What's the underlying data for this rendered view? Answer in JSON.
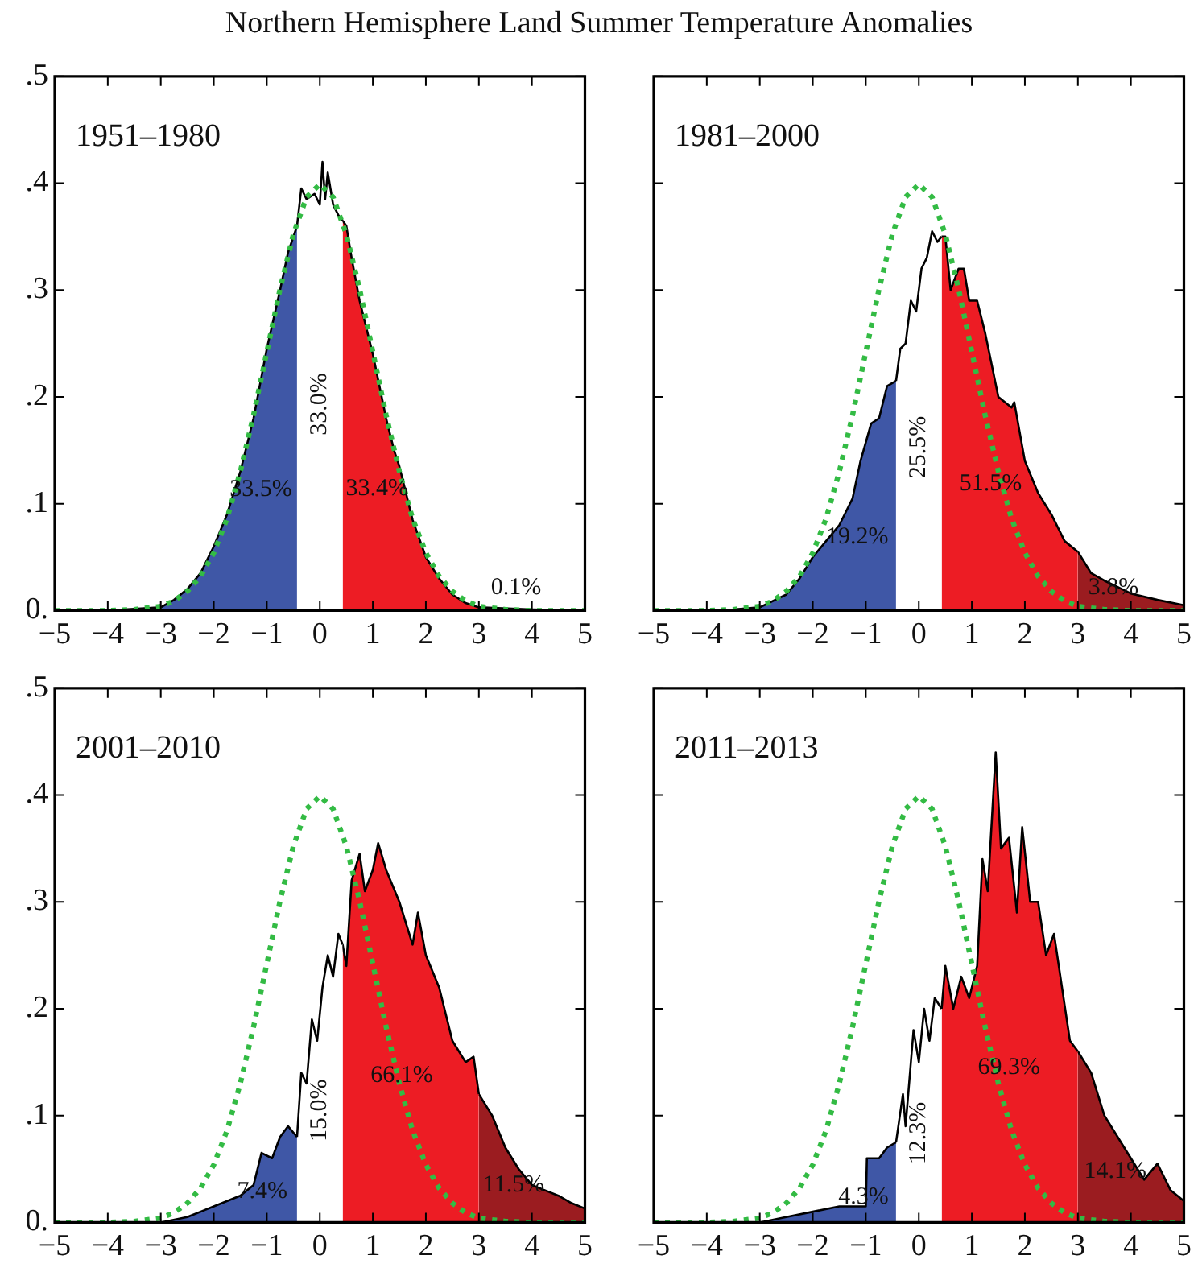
{
  "chart_data": [
    {
      "type": "area",
      "title": "1951–1980",
      "annotations": [
        "Northern Hemisphere Land  Summer Temperature Anomalies",
        "33.5%",
        "33.0%",
        "33.4%",
        "0.1%"
      ],
      "xlim": [
        -5,
        5
      ],
      "ylim": [
        0,
        0.5
      ],
      "xticks": [
        {
          "value": -5,
          "label": "−5"
        },
        {
          "value": -4,
          "label": "−4"
        },
        {
          "value": -3,
          "label": "−3"
        },
        {
          "value": -2,
          "label": "−2"
        },
        {
          "value": -1,
          "label": "−1"
        },
        0,
        1,
        2,
        3,
        4,
        5
      ],
      "yticks": [
        {
          "value": 0,
          "label": "0."
        },
        {
          "value": 0.1,
          "label": ".1"
        },
        {
          "value": 0.2,
          "label": ".2"
        },
        {
          "value": 0.3,
          "label": ".3"
        },
        {
          "value": 0.4,
          "label": ".4"
        },
        {
          "value": 0.5,
          "label": ".5"
        }
      ],
      "series": [
        {
          "color": "#3f57a6",
          "x": [
            -5,
            -4,
            -3,
            -2.75,
            -2.5,
            -2.25,
            -2,
            -1.75,
            -1.5,
            -1.25,
            -1,
            -0.75,
            -0.6,
            -0.43
          ],
          "values": [
            0,
            0,
            0.003,
            0.01,
            0.02,
            0.035,
            0.06,
            0.09,
            0.13,
            0.18,
            0.245,
            0.3,
            0.335,
            0.36
          ]
        },
        {
          "color": "#ffffff",
          "x": [
            -0.43,
            -0.35,
            -0.25,
            -0.1,
            0,
            0.05,
            0.1,
            0.15,
            0.25,
            0.35,
            0.43
          ],
          "values": [
            0.36,
            0.395,
            0.385,
            0.39,
            0.38,
            0.42,
            0.385,
            0.41,
            0.38,
            0.37,
            0.365
          ]
        },
        {
          "color": "#ed1c24",
          "x": [
            0.43,
            0.5,
            0.6,
            0.75,
            0.9,
            1,
            1.25,
            1.4,
            1.5,
            1.75,
            2,
            2.25,
            2.5,
            2.75,
            3
          ],
          "values": [
            0.365,
            0.36,
            0.33,
            0.29,
            0.26,
            0.24,
            0.18,
            0.15,
            0.135,
            0.085,
            0.05,
            0.03,
            0.015,
            0.007,
            0.003
          ]
        },
        {
          "color": "#9b1c20",
          "x": [
            3,
            4,
            5
          ],
          "values": [
            0.003,
            0.001,
            0
          ]
        },
        {
          "type": "line",
          "color": "#33bb44",
          "line_style": "dotted",
          "x": [
            -5,
            -4,
            -3.5,
            -3,
            -2.75,
            -2.5,
            -2.25,
            -2,
            -1.75,
            -1.5,
            -1.25,
            -1,
            -0.75,
            -0.5,
            -0.25,
            0,
            0.25,
            0.5,
            0.75,
            1,
            1.25,
            1.5,
            1.75,
            2,
            2.25,
            2.5,
            2.75,
            3,
            3.5,
            4,
            5
          ],
          "values": [
            0,
            0,
            0.001,
            0.004,
            0.009,
            0.018,
            0.032,
            0.054,
            0.086,
            0.13,
            0.183,
            0.242,
            0.301,
            0.352,
            0.387,
            0.399,
            0.387,
            0.352,
            0.301,
            0.242,
            0.183,
            0.13,
            0.086,
            0.054,
            0.032,
            0.018,
            0.009,
            0.004,
            0.001,
            0,
            0
          ]
        }
      ]
    },
    {
      "type": "area",
      "title": "1981–2000",
      "tick_labels": "x",
      "annotations": [
        "19.2%",
        "25.5%",
        "51.5%",
        "3.8%"
      ],
      "xlim": [
        -5,
        5
      ],
      "ylim": [
        0,
        0.5
      ],
      "xticks": [
        {
          "value": -5,
          "label": "−5"
        },
        {
          "value": -4,
          "label": "−4"
        },
        {
          "value": -3,
          "label": "−3"
        },
        {
          "value": -2,
          "label": "−2"
        },
        {
          "value": -1,
          "label": "−1"
        },
        0,
        1,
        2,
        3,
        4,
        5
      ],
      "yticks": [
        {
          "value": 0,
          "label": null
        },
        {
          "value": 0.1,
          "label": null
        },
        {
          "value": 0.2,
          "label": null
        },
        {
          "value": 0.3,
          "label": null
        },
        {
          "value": 0.4,
          "label": null
        },
        {
          "value": 0.5,
          "label": null
        }
      ],
      "series": [
        {
          "color": "#3f57a6",
          "x": [
            -5,
            -3.5,
            -3,
            -2.5,
            -2.25,
            -2,
            -1.75,
            -1.5,
            -1.25,
            -1.1,
            -0.9,
            -0.75,
            -0.6,
            -0.43
          ],
          "values": [
            0,
            0.001,
            0.003,
            0.015,
            0.03,
            0.05,
            0.065,
            0.08,
            0.105,
            0.14,
            0.175,
            0.18,
            0.21,
            0.215
          ]
        },
        {
          "color": "#ffffff",
          "x": [
            -0.43,
            -0.35,
            -0.25,
            -0.15,
            -0.05,
            0.05,
            0.15,
            0.25,
            0.35,
            0.43
          ],
          "values": [
            0.215,
            0.245,
            0.25,
            0.29,
            0.28,
            0.32,
            0.33,
            0.355,
            0.345,
            0.35
          ]
        },
        {
          "color": "#ed1c24",
          "x": [
            0.43,
            0.5,
            0.6,
            0.75,
            0.85,
            0.95,
            1.1,
            1.25,
            1.5,
            1.75,
            1.8,
            2,
            2.25,
            2.5,
            2.75,
            3
          ],
          "values": [
            0.35,
            0.35,
            0.3,
            0.32,
            0.32,
            0.29,
            0.29,
            0.26,
            0.2,
            0.19,
            0.195,
            0.14,
            0.11,
            0.09,
            0.065,
            0.055
          ]
        },
        {
          "color": "#9b1c20",
          "x": [
            3,
            3.25,
            3.5,
            3.75,
            4,
            4.5,
            5
          ],
          "values": [
            0.055,
            0.035,
            0.028,
            0.022,
            0.016,
            0.01,
            0.005
          ]
        },
        {
          "type": "line",
          "color": "#33bb44",
          "line_style": "dotted",
          "x": [
            -5,
            -4,
            -3.5,
            -3,
            -2.75,
            -2.5,
            -2.25,
            -2,
            -1.75,
            -1.5,
            -1.25,
            -1,
            -0.75,
            -0.5,
            -0.25,
            0,
            0.25,
            0.5,
            0.75,
            1,
            1.25,
            1.5,
            1.75,
            2,
            2.25,
            2.5,
            2.75,
            3,
            3.5,
            4,
            5
          ],
          "values": [
            0,
            0,
            0.001,
            0.004,
            0.009,
            0.018,
            0.032,
            0.054,
            0.086,
            0.13,
            0.183,
            0.242,
            0.301,
            0.352,
            0.387,
            0.399,
            0.387,
            0.352,
            0.301,
            0.242,
            0.183,
            0.13,
            0.086,
            0.054,
            0.032,
            0.018,
            0.009,
            0.004,
            0.001,
            0,
            0
          ]
        }
      ]
    },
    {
      "type": "area",
      "title": "2001–2010",
      "annotations": [
        "7.4%",
        "15.0%",
        "66.1%",
        "11.5%"
      ],
      "xlim": [
        -5,
        5
      ],
      "ylim": [
        0,
        0.5
      ],
      "xticks": [
        {
          "value": -5,
          "label": "−5"
        },
        {
          "value": -4,
          "label": "−4"
        },
        {
          "value": -3,
          "label": "−3"
        },
        {
          "value": -2,
          "label": "−2"
        },
        {
          "value": -1,
          "label": "−1"
        },
        0,
        1,
        2,
        3,
        4,
        5
      ],
      "yticks": [
        {
          "value": 0,
          "label": "0."
        },
        {
          "value": 0.1,
          "label": ".1"
        },
        {
          "value": 0.2,
          "label": ".2"
        },
        {
          "value": 0.3,
          "label": ".3"
        },
        {
          "value": 0.4,
          "label": ".4"
        },
        {
          "value": 0.5,
          "label": ".5"
        }
      ],
      "series": [
        {
          "color": "#3f57a6",
          "x": [
            -5,
            -3,
            -2.5,
            -2,
            -1.5,
            -1.25,
            -1.1,
            -0.9,
            -0.75,
            -0.6,
            -0.43
          ],
          "values": [
            0,
            0,
            0.005,
            0.015,
            0.025,
            0.035,
            0.065,
            0.06,
            0.08,
            0.09,
            0.08
          ]
        },
        {
          "color": "#ffffff",
          "x": [
            -0.43,
            -0.35,
            -0.25,
            -0.15,
            -0.05,
            0.05,
            0.15,
            0.25,
            0.35,
            0.43
          ],
          "values": [
            0.08,
            0.14,
            0.13,
            0.19,
            0.17,
            0.22,
            0.25,
            0.23,
            0.27,
            0.26
          ]
        },
        {
          "color": "#ed1c24",
          "x": [
            0.43,
            0.5,
            0.6,
            0.75,
            0.85,
            1,
            1.1,
            1.25,
            1.5,
            1.75,
            1.85,
            2,
            2.25,
            2.5,
            2.75,
            2.9,
            3
          ],
          "values": [
            0.26,
            0.24,
            0.32,
            0.345,
            0.31,
            0.33,
            0.355,
            0.33,
            0.3,
            0.26,
            0.29,
            0.25,
            0.22,
            0.17,
            0.15,
            0.155,
            0.12
          ]
        },
        {
          "color": "#9b1c20",
          "x": [
            3,
            3.25,
            3.5,
            3.75,
            4,
            4.25,
            4.5,
            4.75,
            5
          ],
          "values": [
            0.12,
            0.1,
            0.07,
            0.05,
            0.035,
            0.03,
            0.025,
            0.018,
            0.013
          ]
        },
        {
          "type": "line",
          "color": "#33bb44",
          "line_style": "dotted",
          "x": [
            -5,
            -4,
            -3.5,
            -3,
            -2.75,
            -2.5,
            -2.25,
            -2,
            -1.75,
            -1.5,
            -1.25,
            -1,
            -0.75,
            -0.5,
            -0.25,
            0,
            0.25,
            0.5,
            0.75,
            1,
            1.25,
            1.5,
            1.75,
            2,
            2.25,
            2.5,
            2.75,
            3,
            3.5,
            4,
            5
          ],
          "values": [
            0,
            0,
            0.001,
            0.004,
            0.009,
            0.018,
            0.032,
            0.054,
            0.086,
            0.13,
            0.183,
            0.242,
            0.301,
            0.352,
            0.387,
            0.399,
            0.387,
            0.352,
            0.301,
            0.242,
            0.183,
            0.13,
            0.086,
            0.054,
            0.032,
            0.018,
            0.009,
            0.004,
            0.001,
            0,
            0
          ]
        }
      ]
    },
    {
      "type": "area",
      "title": "2011–2013",
      "tick_labels": "x",
      "annotations": [
        "4.3%",
        "12.3%",
        "69.3%",
        "14.1%"
      ],
      "xlim": [
        -5,
        5
      ],
      "ylim": [
        0,
        0.5
      ],
      "xticks": [
        {
          "value": -5,
          "label": "−5"
        },
        {
          "value": -4,
          "label": "−4"
        },
        {
          "value": -3,
          "label": "−3"
        },
        {
          "value": -2,
          "label": "−2"
        },
        {
          "value": -1,
          "label": "−1"
        },
        0,
        1,
        2,
        3,
        4,
        5
      ],
      "yticks": [
        {
          "value": 0,
          "label": null
        },
        {
          "value": 0.1,
          "label": null
        },
        {
          "value": 0.2,
          "label": null
        },
        {
          "value": 0.3,
          "label": null
        },
        {
          "value": 0.4,
          "label": null
        },
        {
          "value": 0.5,
          "label": null
        }
      ],
      "series": [
        {
          "color": "#3f57a6",
          "x": [
            -5,
            -3,
            -2.5,
            -2,
            -1.5,
            -1,
            -0.98,
            -0.75,
            -0.6,
            -0.43
          ],
          "values": [
            0,
            0,
            0.005,
            0.01,
            0.015,
            0.015,
            0.06,
            0.06,
            0.07,
            0.075
          ]
        },
        {
          "color": "#ffffff",
          "x": [
            -0.43,
            -0.3,
            -0.25,
            -0.1,
            0,
            0.1,
            0.2,
            0.3,
            0.43
          ],
          "values": [
            0.075,
            0.12,
            0.09,
            0.18,
            0.15,
            0.2,
            0.17,
            0.21,
            0.2
          ]
        },
        {
          "color": "#ed1c24",
          "x": [
            0.43,
            0.5,
            0.65,
            0.8,
            0.95,
            1.1,
            1.2,
            1.3,
            1.45,
            1.55,
            1.7,
            1.85,
            1.95,
            2.1,
            2.25,
            2.4,
            2.55,
            2.7,
            2.85,
            3
          ],
          "values": [
            0.2,
            0.24,
            0.2,
            0.23,
            0.21,
            0.24,
            0.34,
            0.31,
            0.44,
            0.35,
            0.36,
            0.29,
            0.37,
            0.3,
            0.3,
            0.25,
            0.27,
            0.22,
            0.17,
            0.16
          ]
        },
        {
          "color": "#9b1c20",
          "x": [
            3,
            3.25,
            3.5,
            3.75,
            4,
            4.25,
            4.5,
            4.75,
            5
          ],
          "values": [
            0.16,
            0.14,
            0.1,
            0.08,
            0.06,
            0.04,
            0.055,
            0.03,
            0.02
          ]
        },
        {
          "type": "line",
          "color": "#33bb44",
          "line_style": "dotted",
          "x": [
            -5,
            -4,
            -3.5,
            -3,
            -2.75,
            -2.5,
            -2.25,
            -2,
            -1.75,
            -1.5,
            -1.25,
            -1,
            -0.75,
            -0.5,
            -0.25,
            0,
            0.25,
            0.5,
            0.75,
            1,
            1.25,
            1.5,
            1.75,
            2,
            2.25,
            2.5,
            2.75,
            3,
            3.5,
            4,
            5
          ],
          "values": [
            0,
            0,
            0.001,
            0.004,
            0.009,
            0.018,
            0.032,
            0.054,
            0.086,
            0.13,
            0.183,
            0.242,
            0.301,
            0.352,
            0.387,
            0.399,
            0.387,
            0.352,
            0.301,
            0.242,
            0.183,
            0.13,
            0.086,
            0.054,
            0.032,
            0.018,
            0.009,
            0.004,
            0.001,
            0,
            0
          ]
        }
      ]
    }
  ]
}
